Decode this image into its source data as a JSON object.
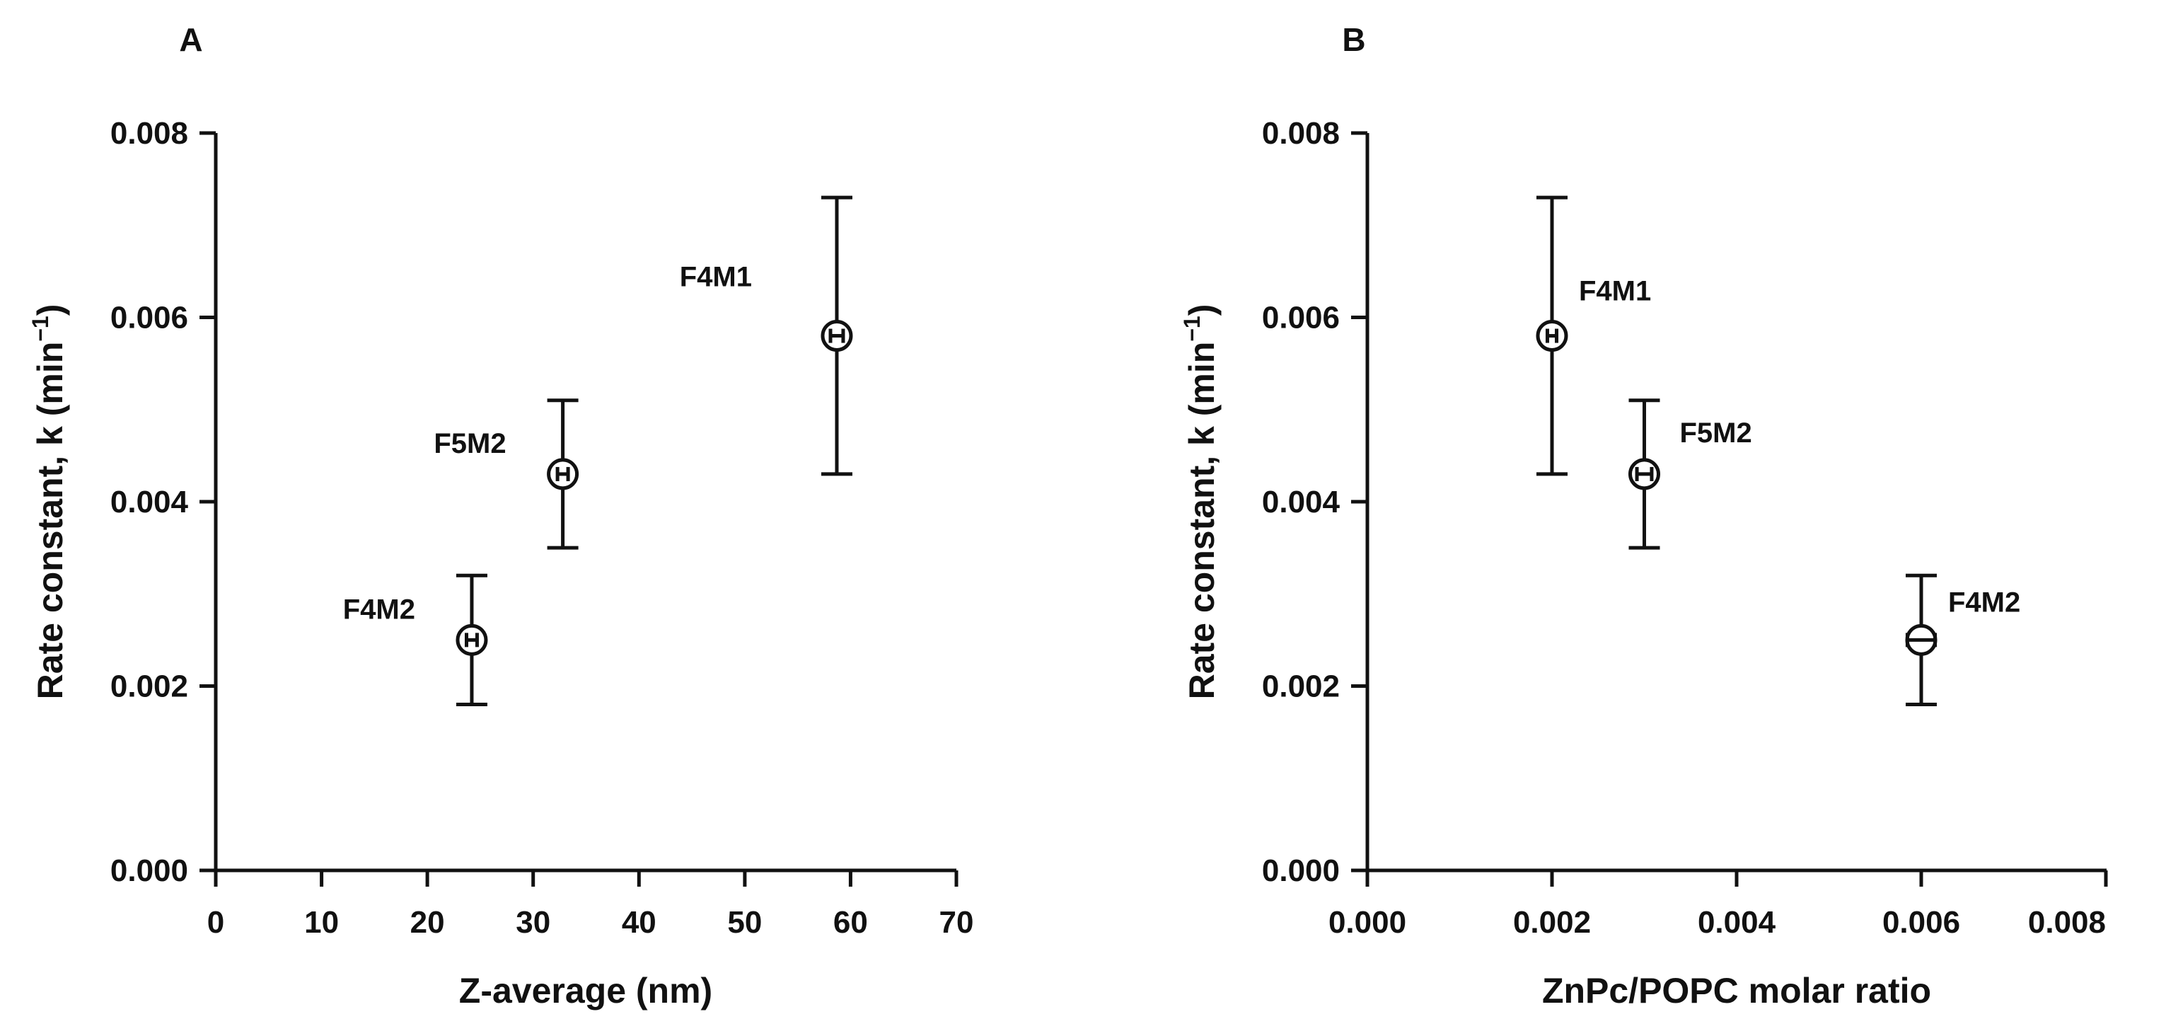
{
  "chart_data": [
    {
      "type": "scatter",
      "panel": "A",
      "xlabel": "Z-average (nm)",
      "ylabel": "Rate constant, k (min",
      "ylabel_sup": "−1",
      "ylabel_close": ")",
      "xlim": [
        0,
        70
      ],
      "ylim": [
        0,
        0.008
      ],
      "x_ticks": [
        "0",
        "10",
        "20",
        "30",
        "40",
        "50",
        "60",
        "70"
      ],
      "y_ticks": [
        "0.000",
        "0.002",
        "0.004",
        "0.006",
        "0.008"
      ],
      "points": [
        {
          "label": "F4M2",
          "x": 24.2,
          "y": 0.0025,
          "y_err_low": 0.0018,
          "y_err_high": 0.0032,
          "x_err": 0.5
        },
        {
          "label": "F5M2",
          "x": 32.8,
          "y": 0.0043,
          "y_err_low": 0.0035,
          "y_err_high": 0.0051,
          "x_err": 0.5
        },
        {
          "label": "F4M1",
          "x": 58.7,
          "y": 0.0058,
          "y_err_low": 0.0043,
          "y_err_high": 0.0073,
          "x_err": 0.6
        }
      ]
    },
    {
      "type": "scatter",
      "panel": "B",
      "xlabel": "ZnPc/POPC molar ratio",
      "ylabel": "Rate constant, k (min",
      "ylabel_sup": "−1",
      "ylabel_close": ")",
      "xlim": [
        0,
        0.008
      ],
      "ylim": [
        0,
        0.008
      ],
      "x_ticks": [
        "0.000",
        "0.002",
        "0.004",
        "0.006",
        "0.008"
      ],
      "y_ticks": [
        "0.000",
        "0.002",
        "0.004",
        "0.006",
        "0.008"
      ],
      "points": [
        {
          "label": "F4M1",
          "x": 0.002,
          "y": 0.0058,
          "y_err_low": 0.0043,
          "y_err_high": 0.0073,
          "x_err": 5e-05
        },
        {
          "label": "F5M2",
          "x": 0.003,
          "y": 0.0043,
          "y_err_low": 0.0035,
          "y_err_high": 0.0051,
          "x_err": 8e-05
        },
        {
          "label": "F4M2",
          "x": 0.006,
          "y": 0.0025,
          "y_err_low": 0.0018,
          "y_err_high": 0.0032,
          "x_err": 0.00015
        }
      ]
    }
  ]
}
